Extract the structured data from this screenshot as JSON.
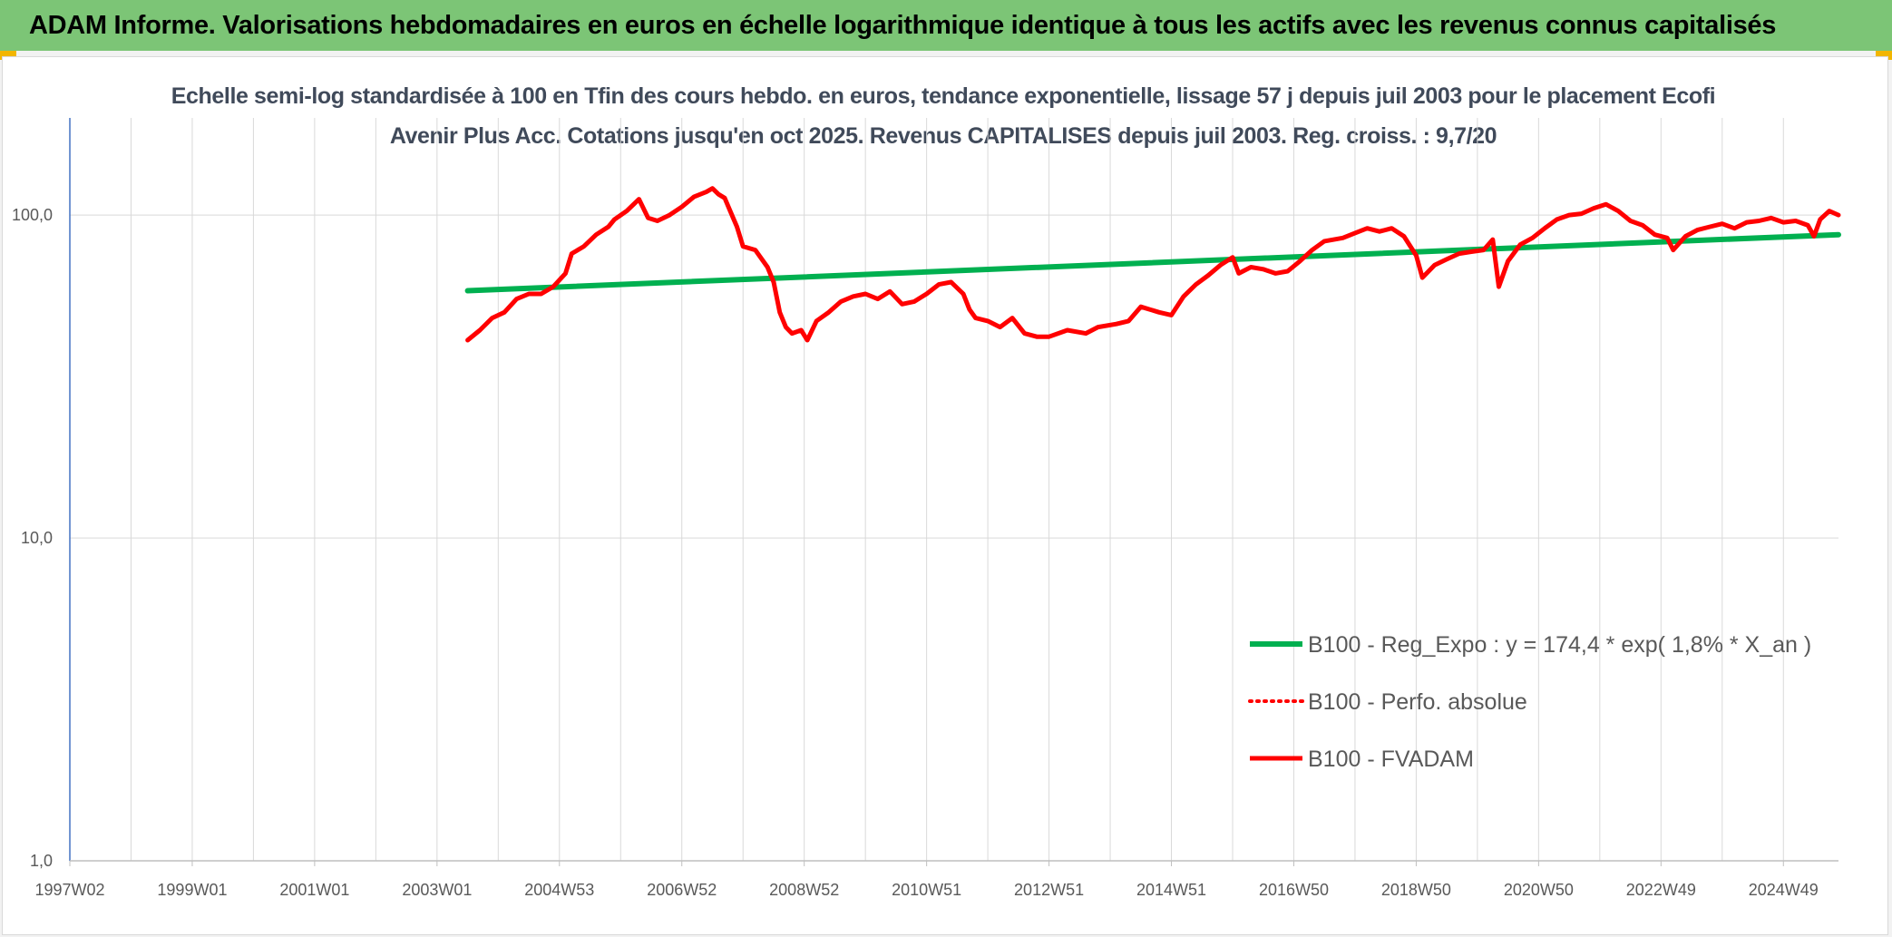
{
  "banner": {
    "title": "ADAM Informe. Valorisations hebdomadaires en euros en échelle logarithmique identique à tous les actifs avec les revenus connus capitalisés"
  },
  "colors": {
    "banner_bg": "#7cc576",
    "trend": "#00b050",
    "series": "#ff0000",
    "grid": "#d9d9d9",
    "axis": "#4472c4"
  },
  "chart_data": {
    "type": "line",
    "title": "Echelle semi-log standardisée à 100 en Tfin des cours hebdo. en euros, tendance exponentielle, lissage 57 j depuis juil 2003 pour le placement Ecofi Avenir Plus Acc. Cotations jusqu'en oct 2025. Revenus CAPITALISES depuis juil 2003. Reg. croiss. : 9,7/20",
    "y_scale": "log",
    "ylim": [
      1,
      200
    ],
    "y_ticks": [
      "1,0",
      "10,0",
      "100,0"
    ],
    "y_tick_values": [
      1,
      10,
      100
    ],
    "x_range": [
      1997.0,
      2025.9
    ],
    "x_tick_labels": [
      "1997W02",
      "1999W01",
      "2001W01",
      "2003W01",
      "2004W53",
      "2006W52",
      "2008W52",
      "2010W51",
      "2012W51",
      "2014W51",
      "2016W50",
      "2018W50",
      "2020W50",
      "2022W49",
      "2024W49"
    ],
    "x_tick_values": [
      1997.0,
      1999.0,
      2001.0,
      2003.0,
      2005.0,
      2007.0,
      2009.0,
      2011.0,
      2013.0,
      2015.0,
      2017.0,
      2019.0,
      2021.0,
      2023.0,
      2025.0
    ],
    "x_grid_step_years": 1,
    "legend_position": "lower-right",
    "series": [
      {
        "name": "B100 - Reg_Expo : y = 174,4 * exp( 1,8% *  X_an )",
        "style": "trend",
        "points": [
          [
            2003.5,
            58.3
          ],
          [
            2025.9,
            87.0
          ]
        ]
      },
      {
        "name": "B100 - Perfo. absolue",
        "style": "dotted",
        "points": []
      },
      {
        "name": "B100 - FVADAM",
        "style": "solid",
        "points": [
          [
            2003.5,
            41
          ],
          [
            2003.7,
            44
          ],
          [
            2003.9,
            48
          ],
          [
            2004.1,
            50
          ],
          [
            2004.3,
            55
          ],
          [
            2004.5,
            57
          ],
          [
            2004.7,
            57
          ],
          [
            2004.9,
            60
          ],
          [
            2005.1,
            66
          ],
          [
            2005.2,
            76
          ],
          [
            2005.4,
            80
          ],
          [
            2005.6,
            87
          ],
          [
            2005.8,
            92
          ],
          [
            2005.9,
            97
          ],
          [
            2006.1,
            103
          ],
          [
            2006.3,
            112
          ],
          [
            2006.45,
            98
          ],
          [
            2006.6,
            96
          ],
          [
            2006.8,
            100
          ],
          [
            2007.0,
            106
          ],
          [
            2007.2,
            114
          ],
          [
            2007.4,
            118
          ],
          [
            2007.5,
            121
          ],
          [
            2007.6,
            116
          ],
          [
            2007.7,
            113
          ],
          [
            2007.8,
            102
          ],
          [
            2007.9,
            92
          ],
          [
            2008.0,
            80
          ],
          [
            2008.2,
            78
          ],
          [
            2008.4,
            69
          ],
          [
            2008.5,
            62
          ],
          [
            2008.6,
            50
          ],
          [
            2008.7,
            45
          ],
          [
            2008.8,
            43
          ],
          [
            2008.95,
            44
          ],
          [
            2009.05,
            41
          ],
          [
            2009.2,
            47
          ],
          [
            2009.4,
            50
          ],
          [
            2009.6,
            54
          ],
          [
            2009.8,
            56
          ],
          [
            2010.0,
            57
          ],
          [
            2010.2,
            55
          ],
          [
            2010.4,
            58
          ],
          [
            2010.6,
            53
          ],
          [
            2010.8,
            54
          ],
          [
            2011.0,
            57
          ],
          [
            2011.2,
            61
          ],
          [
            2011.4,
            62
          ],
          [
            2011.6,
            57
          ],
          [
            2011.7,
            51
          ],
          [
            2011.8,
            48
          ],
          [
            2012.0,
            47
          ],
          [
            2012.2,
            45
          ],
          [
            2012.4,
            48
          ],
          [
            2012.6,
            43
          ],
          [
            2012.8,
            42
          ],
          [
            2013.0,
            42
          ],
          [
            2013.3,
            44
          ],
          [
            2013.6,
            43
          ],
          [
            2013.8,
            45
          ],
          [
            2014.1,
            46
          ],
          [
            2014.3,
            47
          ],
          [
            2014.5,
            52
          ],
          [
            2014.8,
            50
          ],
          [
            2015.0,
            49
          ],
          [
            2015.2,
            56
          ],
          [
            2015.4,
            61
          ],
          [
            2015.6,
            65
          ],
          [
            2015.8,
            70
          ],
          [
            2016.0,
            74
          ],
          [
            2016.1,
            66
          ],
          [
            2016.3,
            69
          ],
          [
            2016.5,
            68
          ],
          [
            2016.7,
            66
          ],
          [
            2016.9,
            67
          ],
          [
            2017.1,
            72
          ],
          [
            2017.3,
            78
          ],
          [
            2017.5,
            83
          ],
          [
            2017.8,
            85
          ],
          [
            2018.0,
            88
          ],
          [
            2018.2,
            91
          ],
          [
            2018.4,
            89
          ],
          [
            2018.6,
            91
          ],
          [
            2018.8,
            86
          ],
          [
            2019.0,
            75
          ],
          [
            2019.1,
            64
          ],
          [
            2019.3,
            70
          ],
          [
            2019.5,
            73
          ],
          [
            2019.7,
            76
          ],
          [
            2019.9,
            77
          ],
          [
            2020.1,
            78
          ],
          [
            2020.25,
            84
          ],
          [
            2020.35,
            60
          ],
          [
            2020.5,
            72
          ],
          [
            2020.7,
            81
          ],
          [
            2020.9,
            85
          ],
          [
            2021.1,
            91
          ],
          [
            2021.3,
            97
          ],
          [
            2021.5,
            100
          ],
          [
            2021.7,
            101
          ],
          [
            2021.9,
            105
          ],
          [
            2022.1,
            108
          ],
          [
            2022.3,
            103
          ],
          [
            2022.5,
            96
          ],
          [
            2022.7,
            93
          ],
          [
            2022.9,
            87
          ],
          [
            2023.1,
            85
          ],
          [
            2023.2,
            78
          ],
          [
            2023.4,
            86
          ],
          [
            2023.6,
            90
          ],
          [
            2023.8,
            92
          ],
          [
            2024.0,
            94
          ],
          [
            2024.2,
            91
          ],
          [
            2024.4,
            95
          ],
          [
            2024.6,
            96
          ],
          [
            2024.8,
            98
          ],
          [
            2025.0,
            95
          ],
          [
            2025.2,
            96
          ],
          [
            2025.4,
            93
          ],
          [
            2025.5,
            86
          ],
          [
            2025.6,
            97
          ],
          [
            2025.75,
            103
          ],
          [
            2025.9,
            100
          ]
        ]
      }
    ]
  }
}
